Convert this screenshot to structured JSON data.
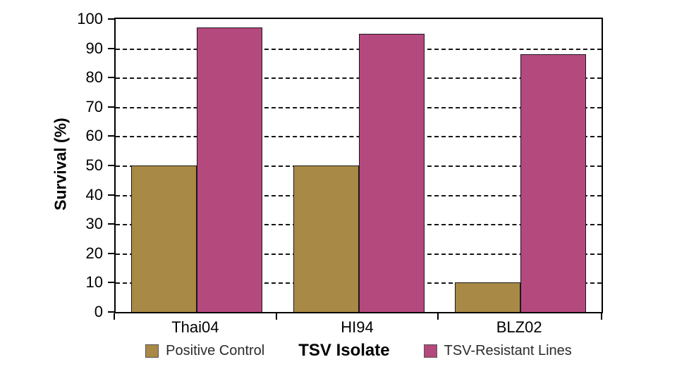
{
  "chart_data": {
    "type": "bar",
    "title": "",
    "categories": [
      "Thai04",
      "HI94",
      "BLZ02"
    ],
    "series": [
      {
        "name": "Positive Control",
        "color": "#a88945",
        "values": [
          50,
          50,
          10
        ]
      },
      {
        "name": "TSV-Resistant Lines",
        "color": "#b4497e",
        "values": [
          97,
          95,
          88
        ]
      }
    ],
    "xlabel": "TSV Isolate",
    "ylabel": "Survival (%)",
    "ylim": [
      0,
      100
    ],
    "ytick_step": 10,
    "y_ticks": [
      0,
      10,
      20,
      30,
      40,
      50,
      60,
      70,
      80,
      90,
      100
    ],
    "grid": "horizontal-dashed",
    "legend_position": "bottom"
  }
}
